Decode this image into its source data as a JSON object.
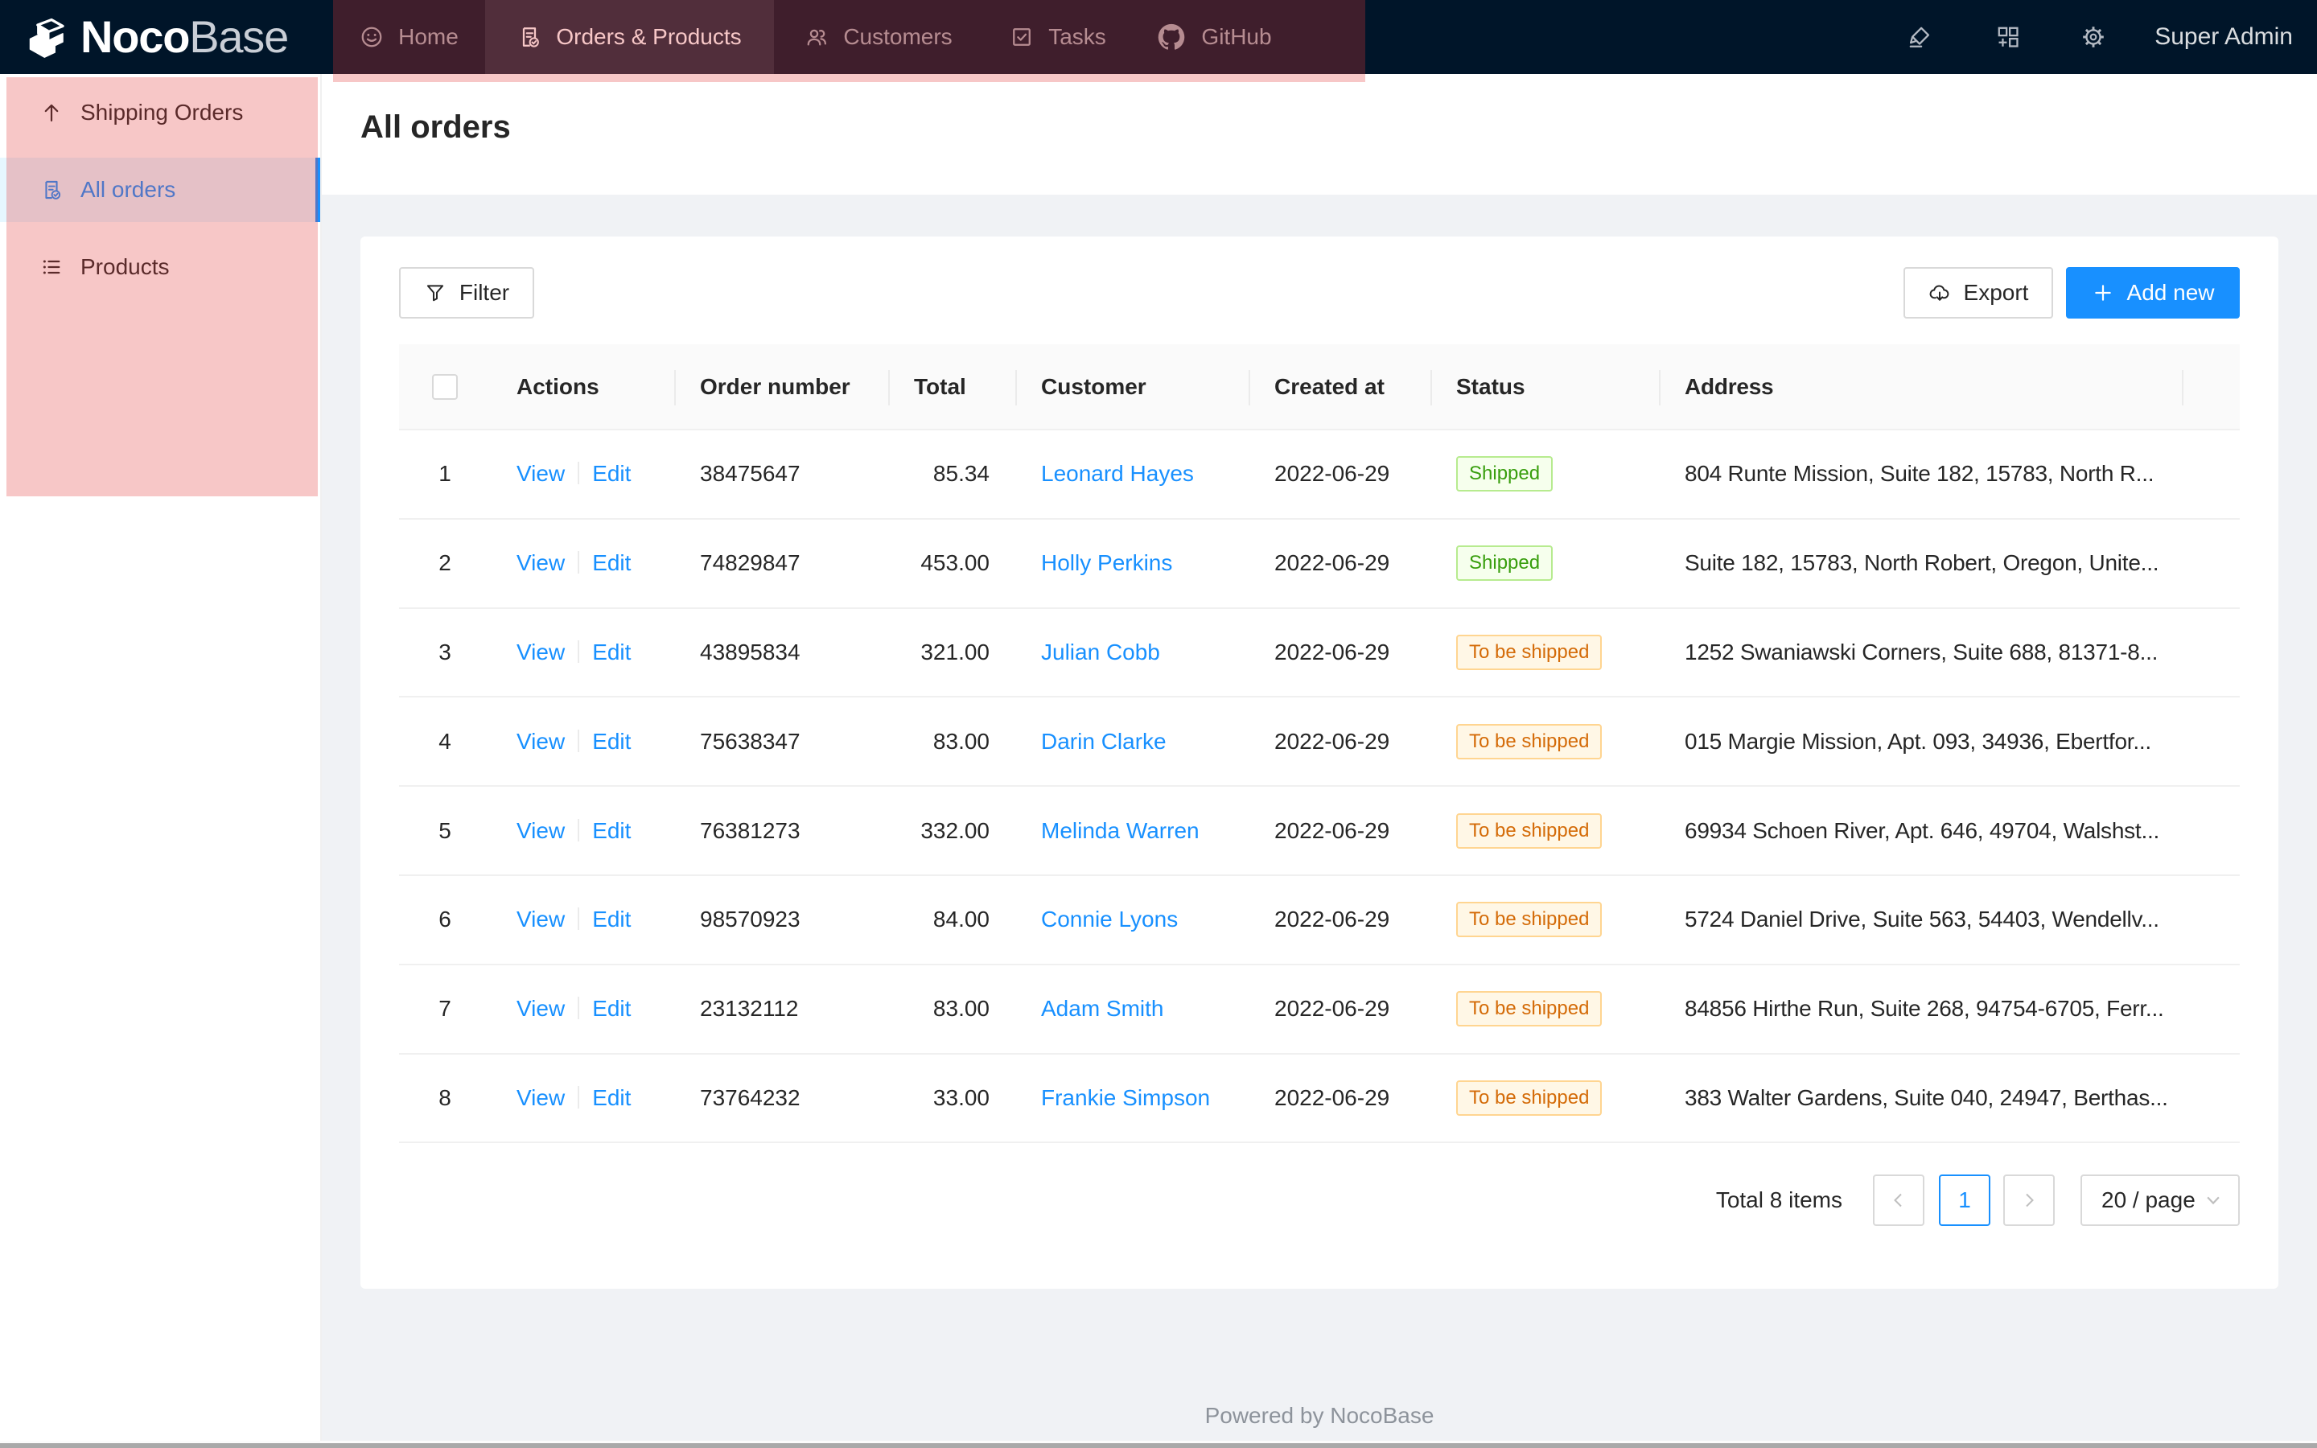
{
  "nav": {
    "brand": {
      "bold": "Noco",
      "light": "Base"
    },
    "items": [
      {
        "label": "Home",
        "icon": "smile-icon",
        "selected": false
      },
      {
        "label": "Orders & Products",
        "icon": "file-check-icon",
        "selected": true
      },
      {
        "label": "Customers",
        "icon": "team-icon",
        "selected": false
      },
      {
        "label": "Tasks",
        "icon": "check-square-icon",
        "selected": false
      },
      {
        "label": "GitHub",
        "icon": "github-icon",
        "selected": false
      }
    ],
    "right_icons": [
      "highlighter-icon",
      "blocks-add-icon",
      "gear-icon"
    ],
    "user": "Super Admin"
  },
  "sidebar": {
    "items": [
      {
        "label": "Shipping Orders",
        "icon": "arrow-up-icon",
        "selected": false
      },
      {
        "label": "All orders",
        "icon": "file-check-icon",
        "selected": true
      },
      {
        "label": "Products",
        "icon": "list-icon",
        "selected": false
      }
    ]
  },
  "page": {
    "title": "All orders"
  },
  "toolbar": {
    "filter_label": "Filter",
    "export_label": "Export",
    "add_new_label": "Add new"
  },
  "table": {
    "columns": [
      "Actions",
      "Order number",
      "Total",
      "Customer",
      "Created at",
      "Status",
      "Address"
    ],
    "action_labels": {
      "view": "View",
      "edit": "Edit"
    },
    "rows": [
      {
        "index": "1",
        "order_number": "38475647",
        "total": "85.34",
        "customer": "Leonard Hayes",
        "created_at": "2022-06-29",
        "status": "Shipped",
        "status_type": "green",
        "address": "804 Runte Mission, Suite 182, 15783, North R..."
      },
      {
        "index": "2",
        "order_number": "74829847",
        "total": "453.00",
        "customer": "Holly Perkins",
        "created_at": "2022-06-29",
        "status": "Shipped",
        "status_type": "green",
        "address": "Suite 182, 15783, North Robert, Oregon, Unite..."
      },
      {
        "index": "3",
        "order_number": "43895834",
        "total": "321.00",
        "customer": "Julian Cobb",
        "created_at": "2022-06-29",
        "status": "To be shipped",
        "status_type": "orange",
        "address": "1252 Swaniawski Corners, Suite 688, 81371-8..."
      },
      {
        "index": "4",
        "order_number": "75638347",
        "total": "83.00",
        "customer": "Darin Clarke",
        "created_at": "2022-06-29",
        "status": "To be shipped",
        "status_type": "orange",
        "address": "015 Margie Mission, Apt. 093, 34936, Ebertfor..."
      },
      {
        "index": "5",
        "order_number": "76381273",
        "total": "332.00",
        "customer": "Melinda Warren",
        "created_at": "2022-06-29",
        "status": "To be shipped",
        "status_type": "orange",
        "address": "69934 Schoen River, Apt. 646, 49704, Walshst..."
      },
      {
        "index": "6",
        "order_number": "98570923",
        "total": "84.00",
        "customer": "Connie Lyons",
        "created_at": "2022-06-29",
        "status": "To be shipped",
        "status_type": "orange",
        "address": "5724 Daniel Drive, Suite 563, 54403, Wendellv..."
      },
      {
        "index": "7",
        "order_number": "23132112",
        "total": "83.00",
        "customer": "Adam Smith",
        "created_at": "2022-06-29",
        "status": "To be shipped",
        "status_type": "orange",
        "address": "84856 Hirthe Run, Suite 268, 94754-6705, Ferr..."
      },
      {
        "index": "8",
        "order_number": "73764232",
        "total": "33.00",
        "customer": "Frankie Simpson",
        "created_at": "2022-06-29",
        "status": "To be shipped",
        "status_type": "orange",
        "address": "383 Walter Gardens, Suite 040, 24947, Berthas..."
      }
    ]
  },
  "pagination": {
    "total_text": "Total 8 items",
    "current_page": "1",
    "page_size": "20 / page"
  },
  "footer": {
    "text": "Powered by NocoBase"
  },
  "colors": {
    "nav_bg": "#001529",
    "accent_blue": "#1890ff",
    "overlay_red": "rgba(227,55,55,0.28)",
    "status_green": "#389e0d",
    "status_orange": "#d46b08",
    "page_bg": "#f0f2f5"
  }
}
